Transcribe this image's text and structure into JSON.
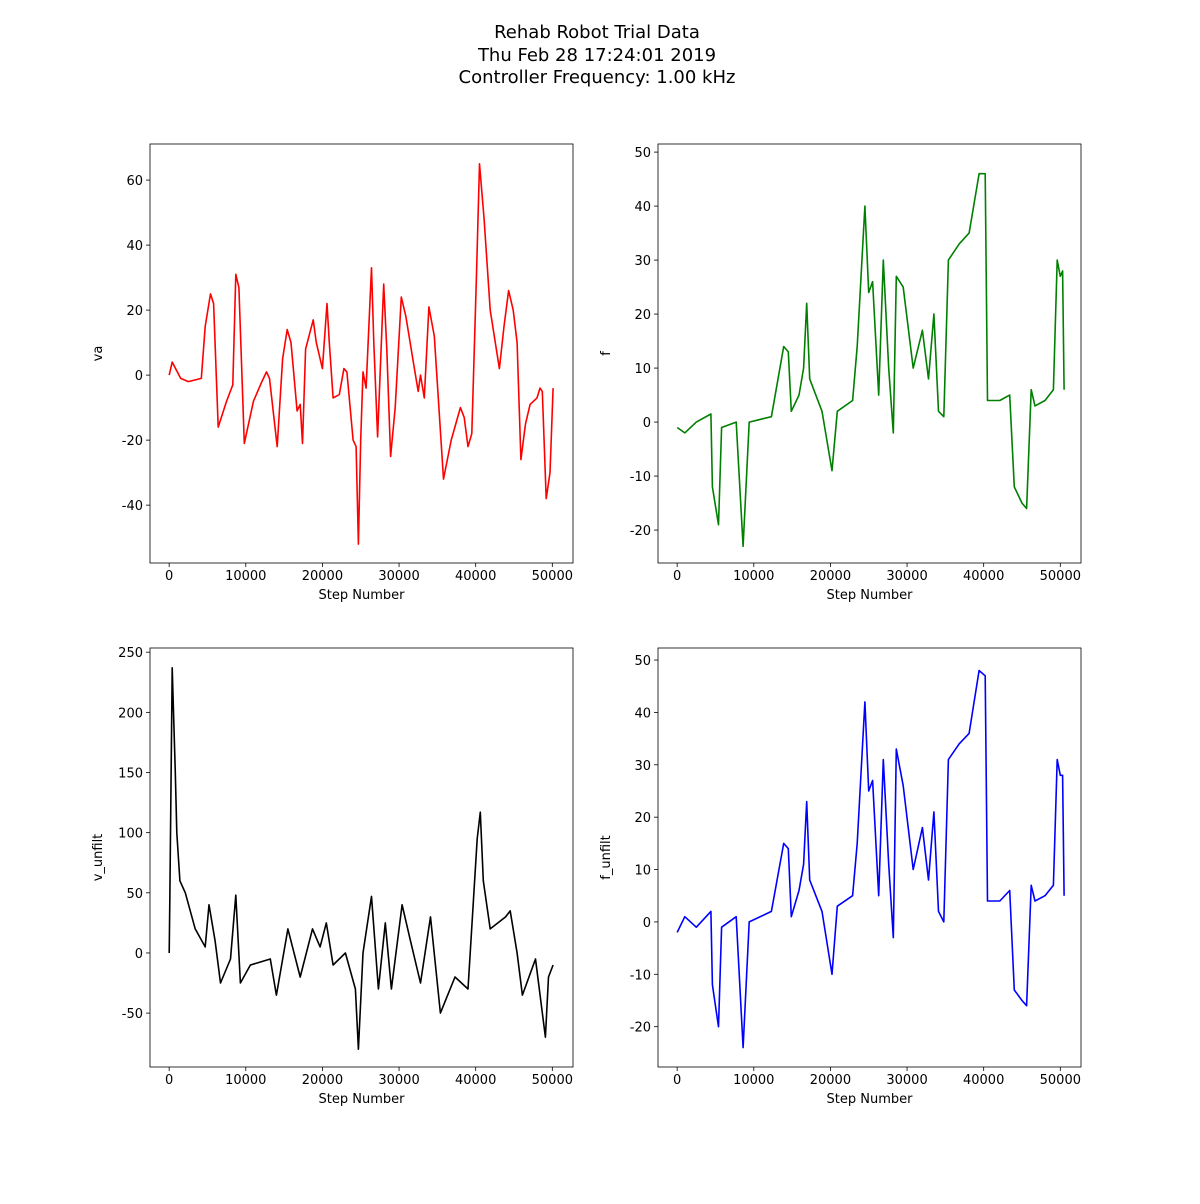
{
  "title": [
    "Rehab Robot Trial Data",
    "Thu Feb 28 17:24:01 2019",
    "Controller Frequency: 1.00 kHz"
  ],
  "chart_data": [
    {
      "type": "line",
      "xlabel": "Step Number",
      "ylabel": "va",
      "color": "#ff0000",
      "xlim": [
        -2500,
        52700
      ],
      "ylim": [
        -57.8,
        71.1
      ],
      "xticks": [
        0,
        10000,
        20000,
        30000,
        40000,
        50000
      ],
      "yticks": [
        -40,
        -20,
        0,
        20,
        40,
        60
      ],
      "x": [
        0,
        400,
        1500,
        2500,
        4200,
        4700,
        5400,
        5800,
        6400,
        7500,
        8300,
        8700,
        9100,
        9800,
        11000,
        12100,
        12700,
        13100,
        14100,
        14800,
        15400,
        15900,
        16700,
        17100,
        17400,
        17800,
        18800,
        19200,
        20000,
        20600,
        20900,
        21400,
        22200,
        22800,
        23200,
        24000,
        24400,
        24700,
        25000,
        25300,
        25700,
        26400,
        26700,
        27200,
        28000,
        28400,
        28900,
        29500,
        30300,
        30900,
        31800,
        32500,
        32800,
        33300,
        33900,
        34600,
        35800,
        36800,
        38000,
        38500,
        39000,
        39500,
        40100,
        40500,
        41100,
        41900,
        43100,
        43700,
        44300,
        44900,
        45400,
        45900,
        46500,
        47100,
        48000,
        48400,
        48700,
        49200,
        49700,
        50100
      ],
      "values": [
        0,
        4,
        -1,
        -2,
        -1,
        15,
        25,
        22,
        -16,
        -8,
        -3,
        31,
        27,
        -21,
        -8,
        -2,
        1,
        -1,
        -22,
        5,
        14,
        10,
        -11,
        -9,
        -21,
        8,
        17,
        10,
        2,
        22,
        10,
        -7,
        -6,
        2,
        1,
        -20,
        -22,
        -52,
        -20,
        1,
        -4,
        33,
        10,
        -19,
        28,
        8,
        -25,
        -10,
        24,
        18,
        5,
        -5,
        0,
        -7,
        21,
        12,
        -32,
        -20,
        -10,
        -13,
        -22,
        -18,
        30,
        65,
        48,
        20,
        2,
        15,
        26,
        20,
        10,
        -26,
        -15,
        -9,
        -7,
        -4,
        -5,
        -38,
        -30,
        -4
      ]
    },
    {
      "type": "line",
      "xlabel": "Step Number",
      "ylabel": "f",
      "color": "#008000",
      "xlim": [
        -2500,
        52700
      ],
      "ylim": [
        -26.1,
        51.5
      ],
      "xticks": [
        0,
        10000,
        20000,
        30000,
        40000,
        50000
      ],
      "yticks": [
        -20,
        -10,
        0,
        10,
        20,
        30,
        40,
        50
      ],
      "x": [
        0,
        1000,
        2500,
        4400,
        4600,
        5400,
        5800,
        7700,
        8600,
        9400,
        12300,
        13900,
        14500,
        14900,
        15900,
        16500,
        16900,
        17300,
        18900,
        20200,
        20900,
        22900,
        23500,
        24500,
        25000,
        25500,
        26300,
        26900,
        27600,
        28200,
        28600,
        29500,
        30800,
        32000,
        32800,
        33500,
        34100,
        34800,
        35400,
        36800,
        38100,
        39400,
        40200,
        40500,
        42100,
        43400,
        44000,
        45000,
        45600,
        46200,
        46700,
        48000,
        49100,
        49600,
        50000,
        50300,
        50500
      ],
      "values": [
        -1,
        -2,
        0,
        1.5,
        -12,
        -19,
        -1,
        0,
        -23,
        0,
        1,
        14,
        13,
        2,
        5,
        10,
        22,
        8,
        2,
        -9,
        2,
        4,
        14,
        40,
        24,
        26,
        5,
        30,
        10,
        -2,
        27,
        25,
        10,
        17,
        8,
        20,
        2,
        1,
        30,
        33,
        35,
        46,
        46,
        4,
        4,
        5,
        -12,
        -15,
        -16,
        6,
        3,
        4,
        6,
        30,
        27,
        28,
        6
      ]
    },
    {
      "type": "line",
      "xlabel": "Step Number",
      "ylabel": "v_unfilt",
      "color": "#000000",
      "xlim": [
        -2500,
        52700
      ],
      "ylim": [
        -94.8,
        253.5
      ],
      "xticks": [
        0,
        10000,
        20000,
        30000,
        40000,
        50000
      ],
      "yticks": [
        -50,
        0,
        50,
        100,
        150,
        200,
        250
      ],
      "x": [
        0,
        100,
        400,
        800,
        1000,
        1400,
        2100,
        3400,
        4700,
        5200,
        6000,
        6700,
        8000,
        8700,
        9300,
        10600,
        13200,
        14000,
        15500,
        17100,
        18700,
        19700,
        20500,
        21400,
        23000,
        24300,
        24700,
        25300,
        26400,
        27300,
        28200,
        29000,
        30400,
        31500,
        32800,
        34100,
        35400,
        37300,
        39000,
        40200,
        40600,
        41000,
        41900,
        43900,
        44500,
        45400,
        46100,
        47800,
        49100,
        49500,
        50100
      ],
      "values": [
        0,
        50,
        237,
        150,
        100,
        60,
        50,
        20,
        5,
        40,
        10,
        -25,
        -5,
        48,
        -25,
        -10,
        -5,
        -35,
        20,
        -20,
        20,
        5,
        25,
        -10,
        0,
        -30,
        -80,
        0,
        47,
        -30,
        25,
        -30,
        40,
        10,
        -25,
        30,
        -50,
        -20,
        -30,
        95,
        117,
        60,
        20,
        30,
        35,
        0,
        -35,
        -5,
        -70,
        -20,
        -10
      ]
    },
    {
      "type": "line",
      "xlabel": "Step Number",
      "ylabel": "f_unfilt",
      "color": "#0000ff",
      "xlim": [
        -2500,
        52700
      ],
      "ylim": [
        -27.7,
        52.3
      ],
      "xticks": [
        0,
        10000,
        20000,
        30000,
        40000,
        50000
      ],
      "yticks": [
        -20,
        -10,
        0,
        10,
        20,
        30,
        40,
        50
      ],
      "x": [
        0,
        1000,
        2500,
        4400,
        4600,
        5400,
        5800,
        7700,
        8600,
        9400,
        12300,
        13900,
        14500,
        14900,
        15900,
        16500,
        16900,
        17300,
        18900,
        20200,
        20900,
        22900,
        23500,
        24500,
        25000,
        25500,
        26300,
        26900,
        27600,
        28200,
        28600,
        29500,
        30800,
        32000,
        32800,
        33500,
        34100,
        34800,
        35400,
        36800,
        38100,
        39400,
        40200,
        40500,
        42100,
        43400,
        44000,
        45000,
        45600,
        46200,
        46700,
        48000,
        49100,
        49600,
        50000,
        50300,
        50500
      ],
      "values": [
        -2,
        1,
        -1,
        2,
        -12,
        -20,
        -1,
        1,
        -24,
        0,
        2,
        15,
        14,
        1,
        6,
        11,
        23,
        8,
        2,
        -10,
        3,
        5,
        15,
        42,
        25,
        27,
        5,
        31,
        11,
        -3,
        33,
        26,
        10,
        18,
        8,
        21,
        2,
        0,
        31,
        34,
        36,
        48,
        47,
        4,
        4,
        6,
        -13,
        -15,
        -16,
        7,
        4,
        5,
        7,
        31,
        28,
        28,
        5
      ]
    }
  ]
}
